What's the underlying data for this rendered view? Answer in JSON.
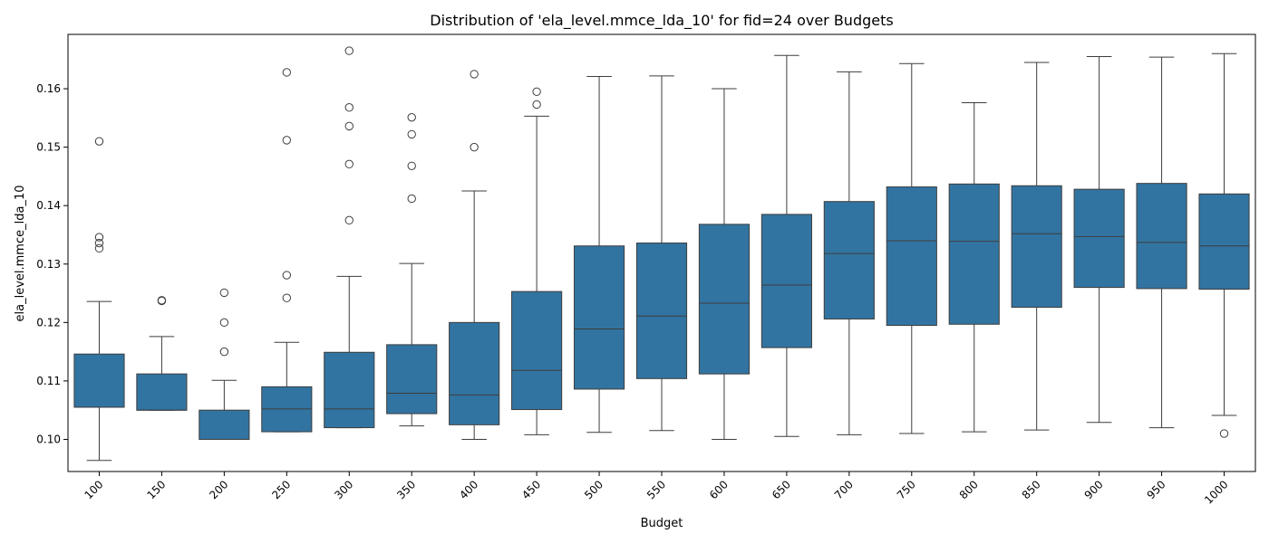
{
  "chart_data": {
    "type": "box",
    "title": "Distribution of 'ela_level.mmce_lda_10' for fid=24 over Budgets",
    "xlabel": "Budget",
    "ylabel": "ela_level.mmce_lda_10",
    "ylim": [
      0.0945,
      0.1693
    ],
    "yticks": [
      "0.10",
      "0.11",
      "0.12",
      "0.13",
      "0.14",
      "0.15",
      "0.16"
    ],
    "ytick_values": [
      0.1,
      0.11,
      0.12,
      0.13,
      0.14,
      0.15,
      0.16
    ],
    "box_color": "#3274a1",
    "line_color": "#3d3d3d",
    "categories": [
      "100",
      "150",
      "200",
      "250",
      "300",
      "350",
      "400",
      "450",
      "500",
      "550",
      "600",
      "650",
      "700",
      "750",
      "800",
      "850",
      "900",
      "950",
      "1000"
    ],
    "boxes": [
      {
        "category": "100",
        "whisker_low": 0.0964,
        "q1": 0.1055,
        "median": 0.1055,
        "q3": 0.1146,
        "whisker_high": 0.1236,
        "outliers": [
          0.151,
          0.1346,
          0.1336,
          0.1327
        ]
      },
      {
        "category": "150",
        "whisker_low": 0.105,
        "q1": 0.105,
        "median": 0.105,
        "q3": 0.1112,
        "whisker_high": 0.1176,
        "outliers": [
          0.1238,
          0.1237
        ]
      },
      {
        "category": "200",
        "whisker_low": 0.1,
        "q1": 0.1,
        "median": 0.1,
        "q3": 0.105,
        "whisker_high": 0.1101,
        "outliers": [
          0.1251,
          0.12,
          0.115
        ]
      },
      {
        "category": "250",
        "whisker_low": 0.1013,
        "q1": 0.1013,
        "median": 0.1052,
        "q3": 0.109,
        "whisker_high": 0.1166,
        "outliers": [
          0.1628,
          0.1512,
          0.1281,
          0.1242
        ]
      },
      {
        "category": "300",
        "whisker_low": 0.102,
        "q1": 0.102,
        "median": 0.1052,
        "q3": 0.1149,
        "whisker_high": 0.1279,
        "outliers": [
          0.1665,
          0.1568,
          0.1536,
          0.1471,
          0.1375
        ]
      },
      {
        "category": "350",
        "whisker_low": 0.1023,
        "q1": 0.1044,
        "median": 0.1079,
        "q3": 0.1162,
        "whisker_high": 0.1301,
        "outliers": [
          0.1551,
          0.1522,
          0.1468,
          0.1412
        ]
      },
      {
        "category": "400",
        "whisker_low": 0.1,
        "q1": 0.1025,
        "median": 0.1076,
        "q3": 0.12,
        "whisker_high": 0.1425,
        "outliers": [
          0.1625,
          0.15
        ]
      },
      {
        "category": "450",
        "whisker_low": 0.1008,
        "q1": 0.1051,
        "median": 0.1118,
        "q3": 0.1253,
        "whisker_high": 0.1553,
        "outliers": [
          0.1595,
          0.1573
        ]
      },
      {
        "category": "500",
        "whisker_low": 0.1012,
        "q1": 0.1086,
        "median": 0.1189,
        "q3": 0.1331,
        "whisker_high": 0.1621,
        "outliers": []
      },
      {
        "category": "550",
        "whisker_low": 0.1015,
        "q1": 0.1104,
        "median": 0.1211,
        "q3": 0.1336,
        "whisker_high": 0.1622,
        "outliers": []
      },
      {
        "category": "600",
        "whisker_low": 0.1,
        "q1": 0.1112,
        "median": 0.1233,
        "q3": 0.1368,
        "whisker_high": 0.16,
        "outliers": []
      },
      {
        "category": "650",
        "whisker_low": 0.1005,
        "q1": 0.1157,
        "median": 0.1264,
        "q3": 0.1385,
        "whisker_high": 0.1657,
        "outliers": []
      },
      {
        "category": "700",
        "whisker_low": 0.1008,
        "q1": 0.1206,
        "median": 0.1318,
        "q3": 0.1407,
        "whisker_high": 0.1629,
        "outliers": []
      },
      {
        "category": "750",
        "whisker_low": 0.101,
        "q1": 0.1195,
        "median": 0.134,
        "q3": 0.1432,
        "whisker_high": 0.1643,
        "outliers": []
      },
      {
        "category": "800",
        "whisker_low": 0.1013,
        "q1": 0.1197,
        "median": 0.1339,
        "q3": 0.1437,
        "whisker_high": 0.1576,
        "outliers": []
      },
      {
        "category": "850",
        "whisker_low": 0.1016,
        "q1": 0.1226,
        "median": 0.1352,
        "q3": 0.1434,
        "whisker_high": 0.1645,
        "outliers": []
      },
      {
        "category": "900",
        "whisker_low": 0.1029,
        "q1": 0.126,
        "median": 0.1347,
        "q3": 0.1428,
        "whisker_high": 0.1655,
        "outliers": []
      },
      {
        "category": "950",
        "whisker_low": 0.102,
        "q1": 0.1258,
        "median": 0.1337,
        "q3": 0.1438,
        "whisker_high": 0.1654,
        "outliers": []
      },
      {
        "category": "1000",
        "whisker_low": 0.1041,
        "q1": 0.1257,
        "median": 0.1331,
        "q3": 0.142,
        "whisker_high": 0.166,
        "outliers": [
          0.101
        ]
      }
    ]
  }
}
